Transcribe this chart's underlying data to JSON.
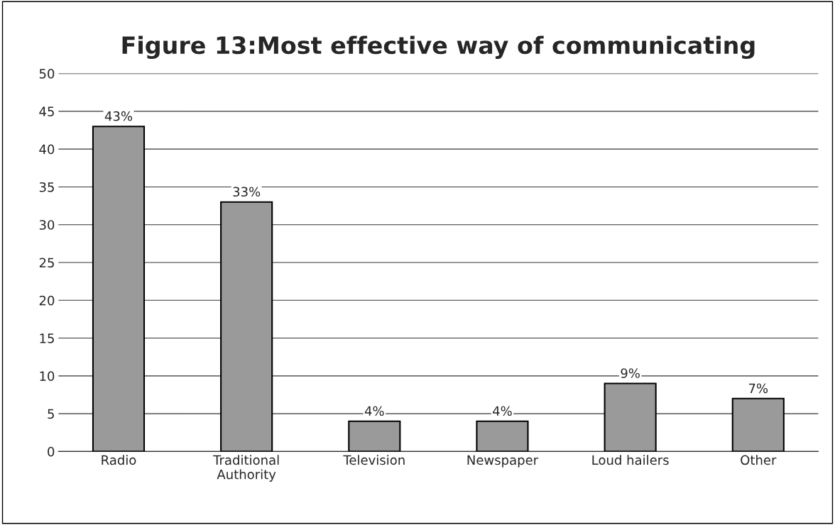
{
  "chart_data": {
    "type": "bar",
    "title": "Figure 13:Most effective way of communicating",
    "categories": [
      "Radio",
      "Traditional\nAuthority",
      "Television",
      "Newspaper",
      "Loud hailers",
      "Other"
    ],
    "values": [
      43,
      33,
      4,
      4,
      9,
      7
    ],
    "value_labels": [
      "43%",
      "33%",
      "4%",
      "4%",
      "9%",
      "7%"
    ],
    "color": "#9a9a9a",
    "ylim": [
      0,
      50
    ],
    "yticks": [
      0,
      5,
      10,
      15,
      20,
      25,
      30,
      35,
      40,
      45,
      50
    ],
    "grid": "y"
  }
}
